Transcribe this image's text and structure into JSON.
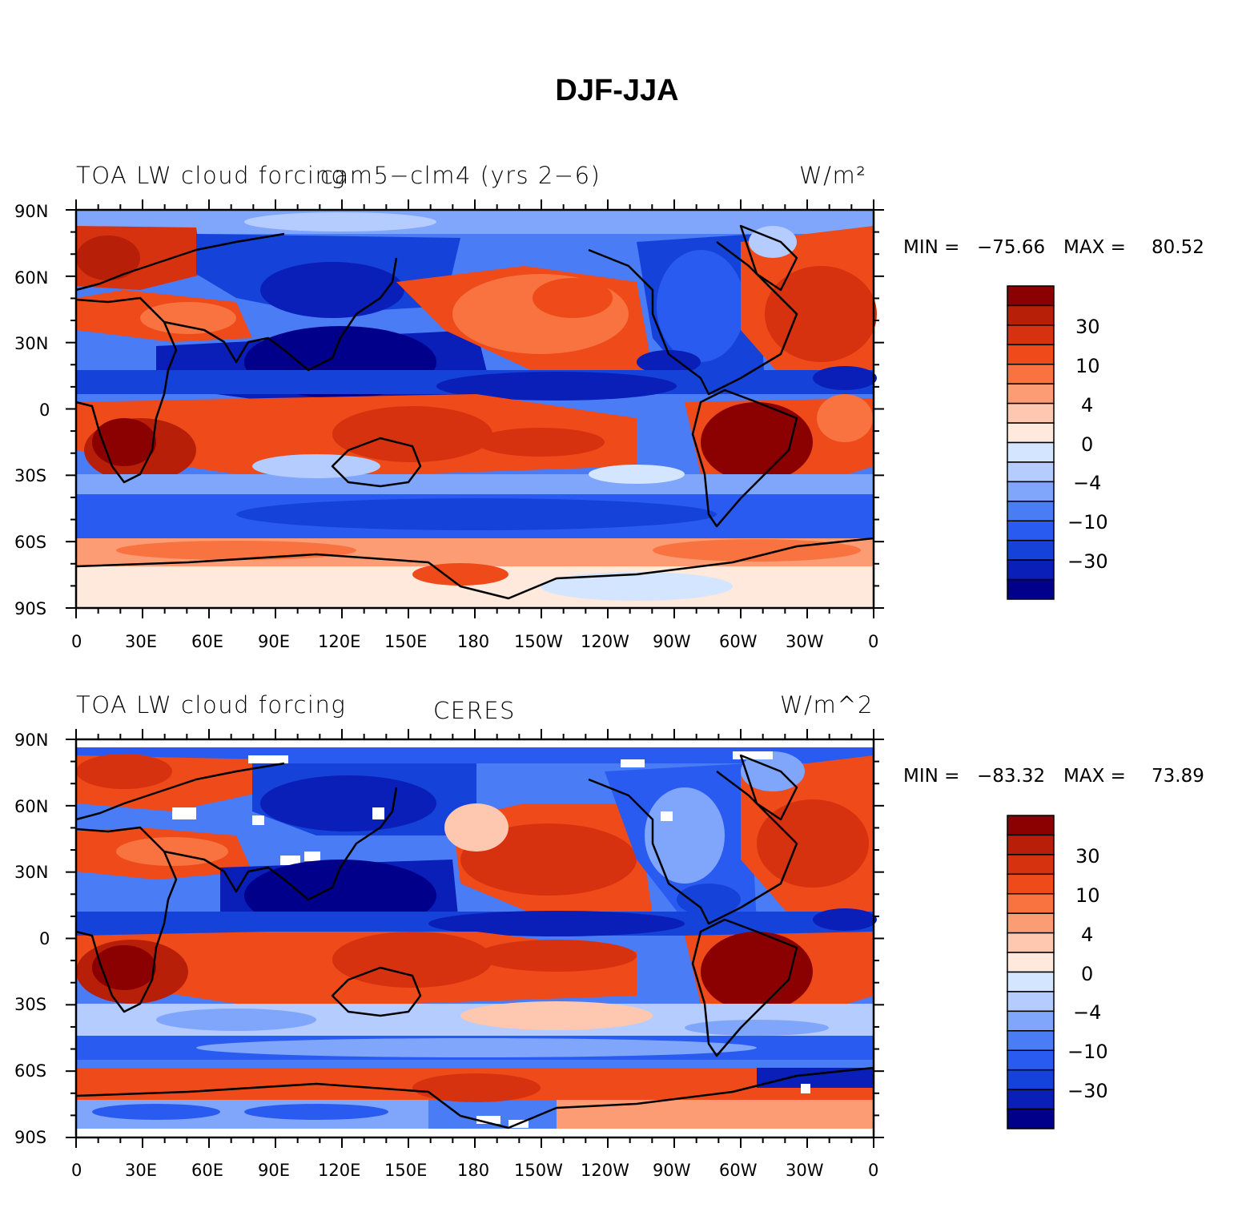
{
  "title": "DJF-JJA",
  "colors": [
    "#00008b",
    "#0a1fb8",
    "#1543d9",
    "#2a5bf0",
    "#4a7cf5",
    "#7fa6fb",
    "#b4ccff",
    "#d4e5ff",
    "#ffe9dc",
    "#fec8b0",
    "#fc9c75",
    "#f8733f",
    "#ee4a1a",
    "#d6320f",
    "#b81f08",
    "#8b0000"
  ],
  "colorbar_labels": [
    "30",
    "10",
    "4",
    "0",
    "−4",
    "−10",
    "−30"
  ],
  "lat_labels": [
    "90N",
    "60N",
    "30N",
    "0",
    "30S",
    "60S",
    "90S"
  ],
  "lon_labels": [
    "0",
    "30E",
    "60E",
    "90E",
    "120E",
    "150E",
    "180",
    "150W",
    "120W",
    "90W",
    "60W",
    "30W",
    "0"
  ],
  "panels": [
    {
      "left_title": "TOA LW cloud forcing",
      "center_title": "cam5−clm4 (yrs 2−6)",
      "units": "W/m²",
      "min_label": "MIN =",
      "min_value": "−75.66",
      "max_label": "MAX =",
      "max_value": "80.52"
    },
    {
      "left_title": "TOA LW cloud forcing",
      "center_title": "CERES",
      "units": "W/m^2",
      "min_label": "MIN =",
      "min_value": "−83.32",
      "max_label": "MAX =",
      "max_value": "73.89"
    }
  ]
}
